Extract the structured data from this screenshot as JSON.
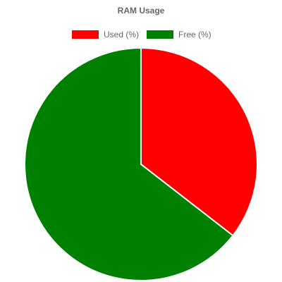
{
  "chart_data": {
    "type": "pie",
    "title": "RAM Usage",
    "legend_position": "top",
    "categories": [
      "Used (%)",
      "Free (%)"
    ],
    "values": [
      35.5,
      64.5
    ],
    "colors": [
      "#ff0000",
      "#008000"
    ],
    "slice_border_color": "#ffffff"
  }
}
